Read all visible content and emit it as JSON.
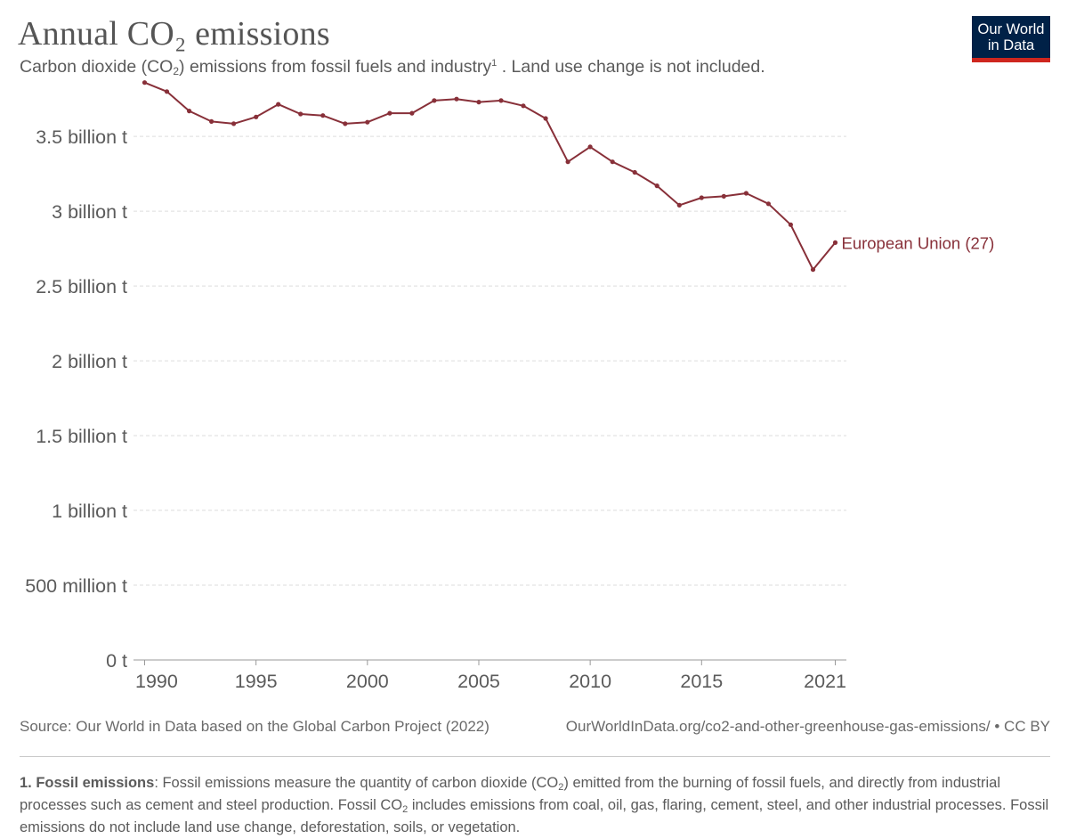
{
  "header": {
    "title": "Annual CO₂ emissions",
    "subtitle_pre": "Carbon dioxide (CO",
    "subtitle_sub": "2",
    "subtitle_mid": ") emissions from fossil fuels and industry",
    "subtitle_sup": "1",
    "subtitle_post": " . Land use change is not included."
  },
  "logo": {
    "line1": "Our World",
    "line2": "in Data"
  },
  "footer": {
    "source": "Source: Our World in Data based on the Global Carbon Project (2022)",
    "url": "OurWorldInData.org/co2-and-other-greenhouse-gas-emissions/ • CC BY"
  },
  "footnote": {
    "label": "1. Fossil emissions",
    "part1": ": Fossil emissions measure the quantity of carbon dioxide (CO",
    "sub1": "2",
    "part2": ") emitted from the burning of fossil fuels, and directly from industrial processes such as cement and steel production. Fossil CO",
    "sub2": "2",
    "part3": " includes emissions from coal, oil, gas, flaring, cement, steel, and other industrial processes. Fossil emissions do not include land use change, deforestation, soils, or vegetation."
  },
  "colors": {
    "series": "#883039",
    "logo_bg": "#002147",
    "logo_accent": "#ce261e"
  },
  "chart_data": {
    "type": "line",
    "title": "Annual CO₂ emissions",
    "xlabel": "",
    "ylabel": "",
    "ylim": [
      0,
      3900000000
    ],
    "xlim": [
      1989.5,
      2021.5
    ],
    "yticks": [
      0,
      500000000,
      1000000000,
      1500000000,
      2000000000,
      2500000000,
      3000000000,
      3500000000
    ],
    "ytick_labels": [
      "0 t",
      "500 million t",
      "1 billion t",
      "1.5 billion t",
      "2 billion t",
      "2.5 billion t",
      "3 billion t",
      "3.5 billion t"
    ],
    "xticks": [
      1990,
      1995,
      2000,
      2005,
      2010,
      2015,
      2021
    ],
    "xtick_labels": [
      "1990",
      "1995",
      "2000",
      "2005",
      "2010",
      "2015",
      "2021"
    ],
    "grid": true,
    "series": [
      {
        "name": "European Union (27)",
        "color": "#883039",
        "x": [
          1990,
          1991,
          1992,
          1993,
          1994,
          1995,
          1996,
          1997,
          1998,
          1999,
          2000,
          2001,
          2002,
          2003,
          2004,
          2005,
          2006,
          2007,
          2008,
          2009,
          2010,
          2011,
          2012,
          2013,
          2014,
          2015,
          2016,
          2017,
          2018,
          2019,
          2020,
          2021
        ],
        "values": [
          3860000000,
          3800000000,
          3670000000,
          3600000000,
          3585000000,
          3630000000,
          3715000000,
          3650000000,
          3640000000,
          3585000000,
          3595000000,
          3655000000,
          3655000000,
          3740000000,
          3750000000,
          3730000000,
          3740000000,
          3705000000,
          3620000000,
          3330000000,
          3430000000,
          3330000000,
          3260000000,
          3170000000,
          3040000000,
          3090000000,
          3100000000,
          3120000000,
          3050000000,
          2910000000,
          2610000000,
          2790000000
        ]
      }
    ]
  }
}
